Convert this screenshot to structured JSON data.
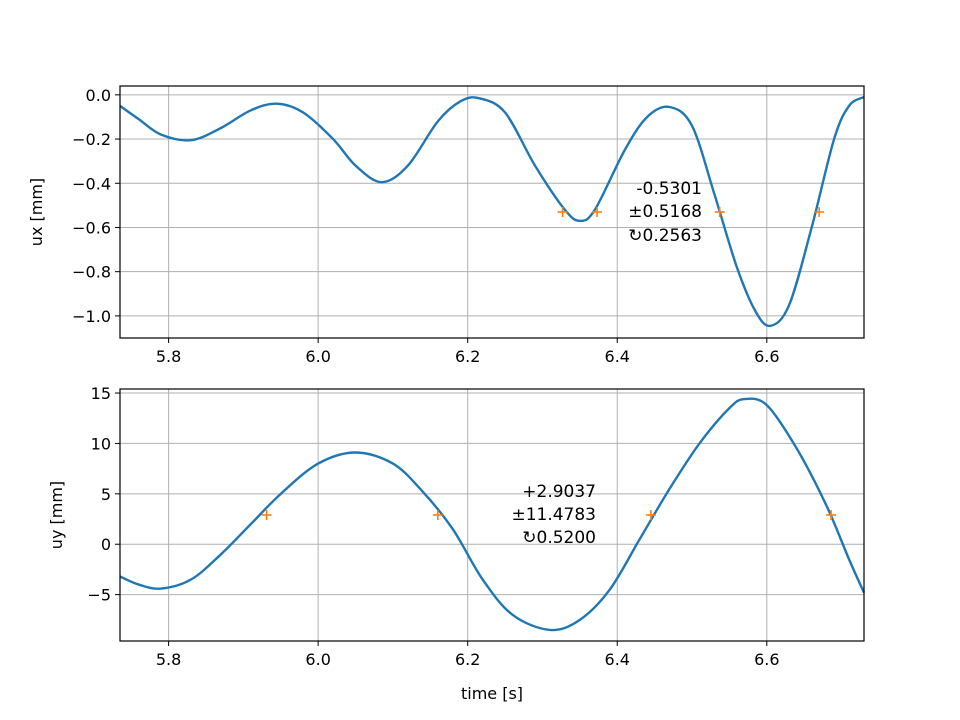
{
  "chart_data": [
    {
      "type": "line",
      "ylabel": "ux [mm]",
      "xlabel": "",
      "xlim": [
        5.735,
        6.73
      ],
      "ylim": [
        -1.1,
        0.04
      ],
      "xticks": [
        5.8,
        6.0,
        6.2,
        6.4,
        6.6
      ],
      "xtick_labels": [
        "5.8",
        "6.0",
        "6.2",
        "6.4",
        "6.6"
      ],
      "yticks": [
        0.0,
        -0.2,
        -0.4,
        -0.6,
        -0.8,
        -1.0
      ],
      "ytick_labels": [
        "0.0",
        "−0.2",
        "−0.4",
        "−0.6",
        "−0.8",
        "−1.0"
      ],
      "grid": true,
      "series": [
        {
          "color": "#1f77b4",
          "x": [
            5.735,
            5.76,
            5.79,
            5.83,
            5.87,
            5.91,
            5.945,
            5.98,
            6.02,
            6.05,
            6.085,
            6.12,
            6.16,
            6.19,
            6.215,
            6.25,
            6.29,
            6.33,
            6.35,
            6.37,
            6.41,
            6.44,
            6.47,
            6.5,
            6.53,
            6.56,
            6.585,
            6.605,
            6.63,
            6.66,
            6.69,
            6.71,
            6.73
          ],
          "y": [
            -0.05,
            -0.11,
            -0.18,
            -0.205,
            -0.15,
            -0.07,
            -0.04,
            -0.08,
            -0.2,
            -0.32,
            -0.395,
            -0.32,
            -0.12,
            -0.03,
            -0.015,
            -0.08,
            -0.32,
            -0.52,
            -0.57,
            -0.52,
            -0.25,
            -0.1,
            -0.055,
            -0.14,
            -0.45,
            -0.78,
            -0.98,
            -1.045,
            -0.95,
            -0.6,
            -0.2,
            -0.05,
            -0.01
          ]
        },
        {
          "color": "#ff7f0e",
          "marker": "+",
          "x": [
            6.327,
            6.373,
            6.537,
            6.67
          ],
          "y": [
            -0.53,
            -0.53,
            -0.53,
            -0.53
          ]
        }
      ],
      "annotation": [
        "-0.5301",
        "±0.5168",
        "↻0.2563"
      ]
    },
    {
      "type": "line",
      "ylabel": "uy [mm]",
      "xlabel": "time [s]",
      "xlim": [
        5.735,
        6.73
      ],
      "ylim": [
        -9.6,
        15.4
      ],
      "xticks": [
        5.8,
        6.0,
        6.2,
        6.4,
        6.6
      ],
      "xtick_labels": [
        "5.8",
        "6.0",
        "6.2",
        "6.4",
        "6.6"
      ],
      "yticks": [
        15,
        10,
        5,
        0,
        -5
      ],
      "ytick_labels": [
        "15",
        "10",
        "5",
        "0",
        "−5"
      ],
      "grid": true,
      "series": [
        {
          "color": "#1f77b4",
          "x": [
            5.735,
            5.76,
            5.79,
            5.83,
            5.87,
            5.91,
            5.95,
            6.0,
            6.05,
            6.1,
            6.14,
            6.18,
            6.22,
            6.26,
            6.31,
            6.35,
            6.39,
            6.43,
            6.47,
            6.51,
            6.55,
            6.57,
            6.6,
            6.64,
            6.68,
            6.71,
            6.73
          ],
          "y": [
            -3.2,
            -4.0,
            -4.4,
            -3.5,
            -1.0,
            2.0,
            5.0,
            8.0,
            9.1,
            8.0,
            5.2,
            1.5,
            -3.5,
            -7.0,
            -8.5,
            -7.5,
            -4.5,
            0.5,
            5.5,
            10.0,
            13.5,
            14.4,
            13.8,
            9.5,
            3.8,
            -1.5,
            -4.8
          ]
        },
        {
          "color": "#ff7f0e",
          "marker": "+",
          "x": [
            5.931,
            6.16,
            6.445,
            6.686
          ],
          "y": [
            2.9,
            2.9,
            2.9,
            2.9
          ]
        }
      ],
      "annotation": [
        "+2.9037",
        "±11.4783",
        "↻0.5200"
      ]
    }
  ]
}
